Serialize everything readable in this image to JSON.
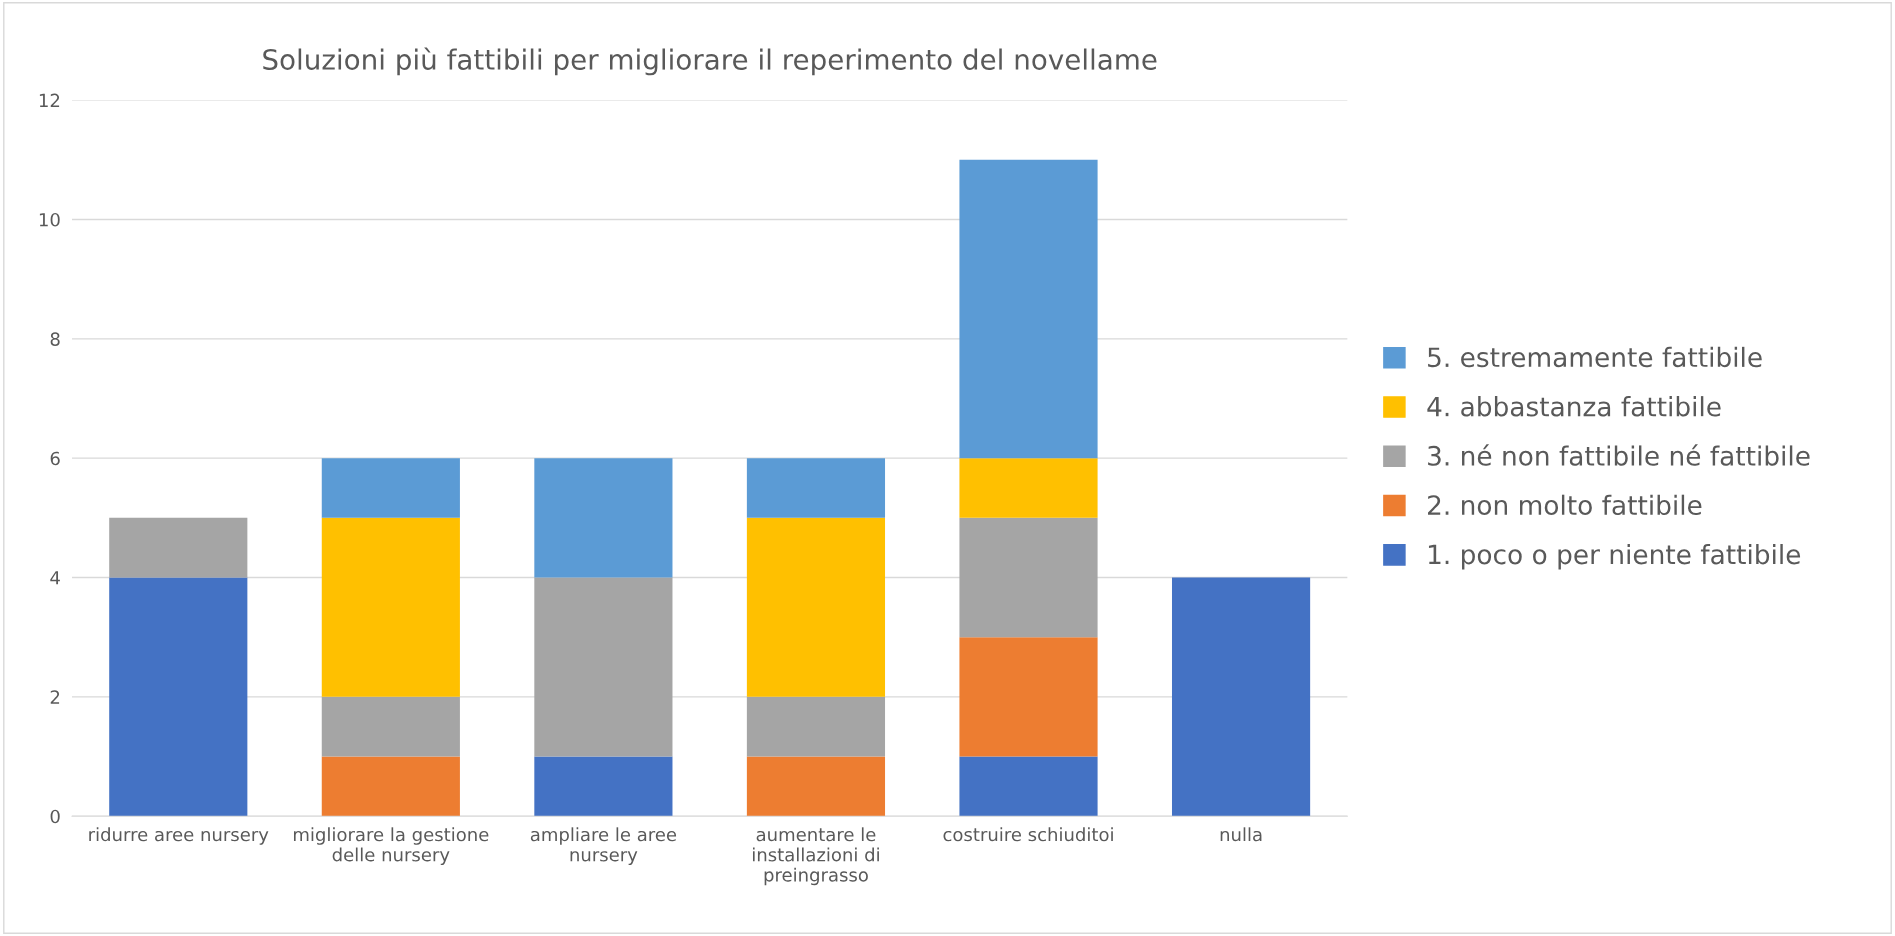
{
  "chart_data": {
    "type": "bar",
    "stacked": true,
    "title": "Soluzioni più fattibili per migliorare il reperimento del novellame",
    "categories": [
      "ridurre aree nursery",
      "migliorare la gestione\ndelle nursery",
      "ampliare le aree\nnursery",
      "aumentare le\ninstallazioni di\npreingrasso",
      "costruire schiuditoi",
      "nulla"
    ],
    "series": [
      {
        "name": "1. poco o per niente fattibile",
        "color": "#4472c4",
        "values": [
          4,
          null,
          1,
          null,
          1,
          4
        ]
      },
      {
        "name": "2. non molto fattibile",
        "color": "#ed7d31",
        "values": [
          null,
          1,
          null,
          1,
          2,
          null
        ]
      },
      {
        "name": "3. né non fattibile né fattibile",
        "color": "#a5a5a5",
        "values": [
          1,
          1,
          3,
          1,
          2,
          null
        ]
      },
      {
        "name": "4. abbastanza fattibile",
        "color": "#ffc000",
        "values": [
          null,
          3,
          null,
          3,
          1,
          null
        ]
      },
      {
        "name": "5. estremamente fattibile",
        "color": "#5b9bd5",
        "values": [
          null,
          1,
          2,
          1,
          5,
          null
        ]
      }
    ],
    "ylim": [
      0,
      12
    ],
    "yticks": [
      0,
      2,
      4,
      6,
      8,
      10,
      12
    ],
    "grid": "y",
    "legend": "right"
  }
}
